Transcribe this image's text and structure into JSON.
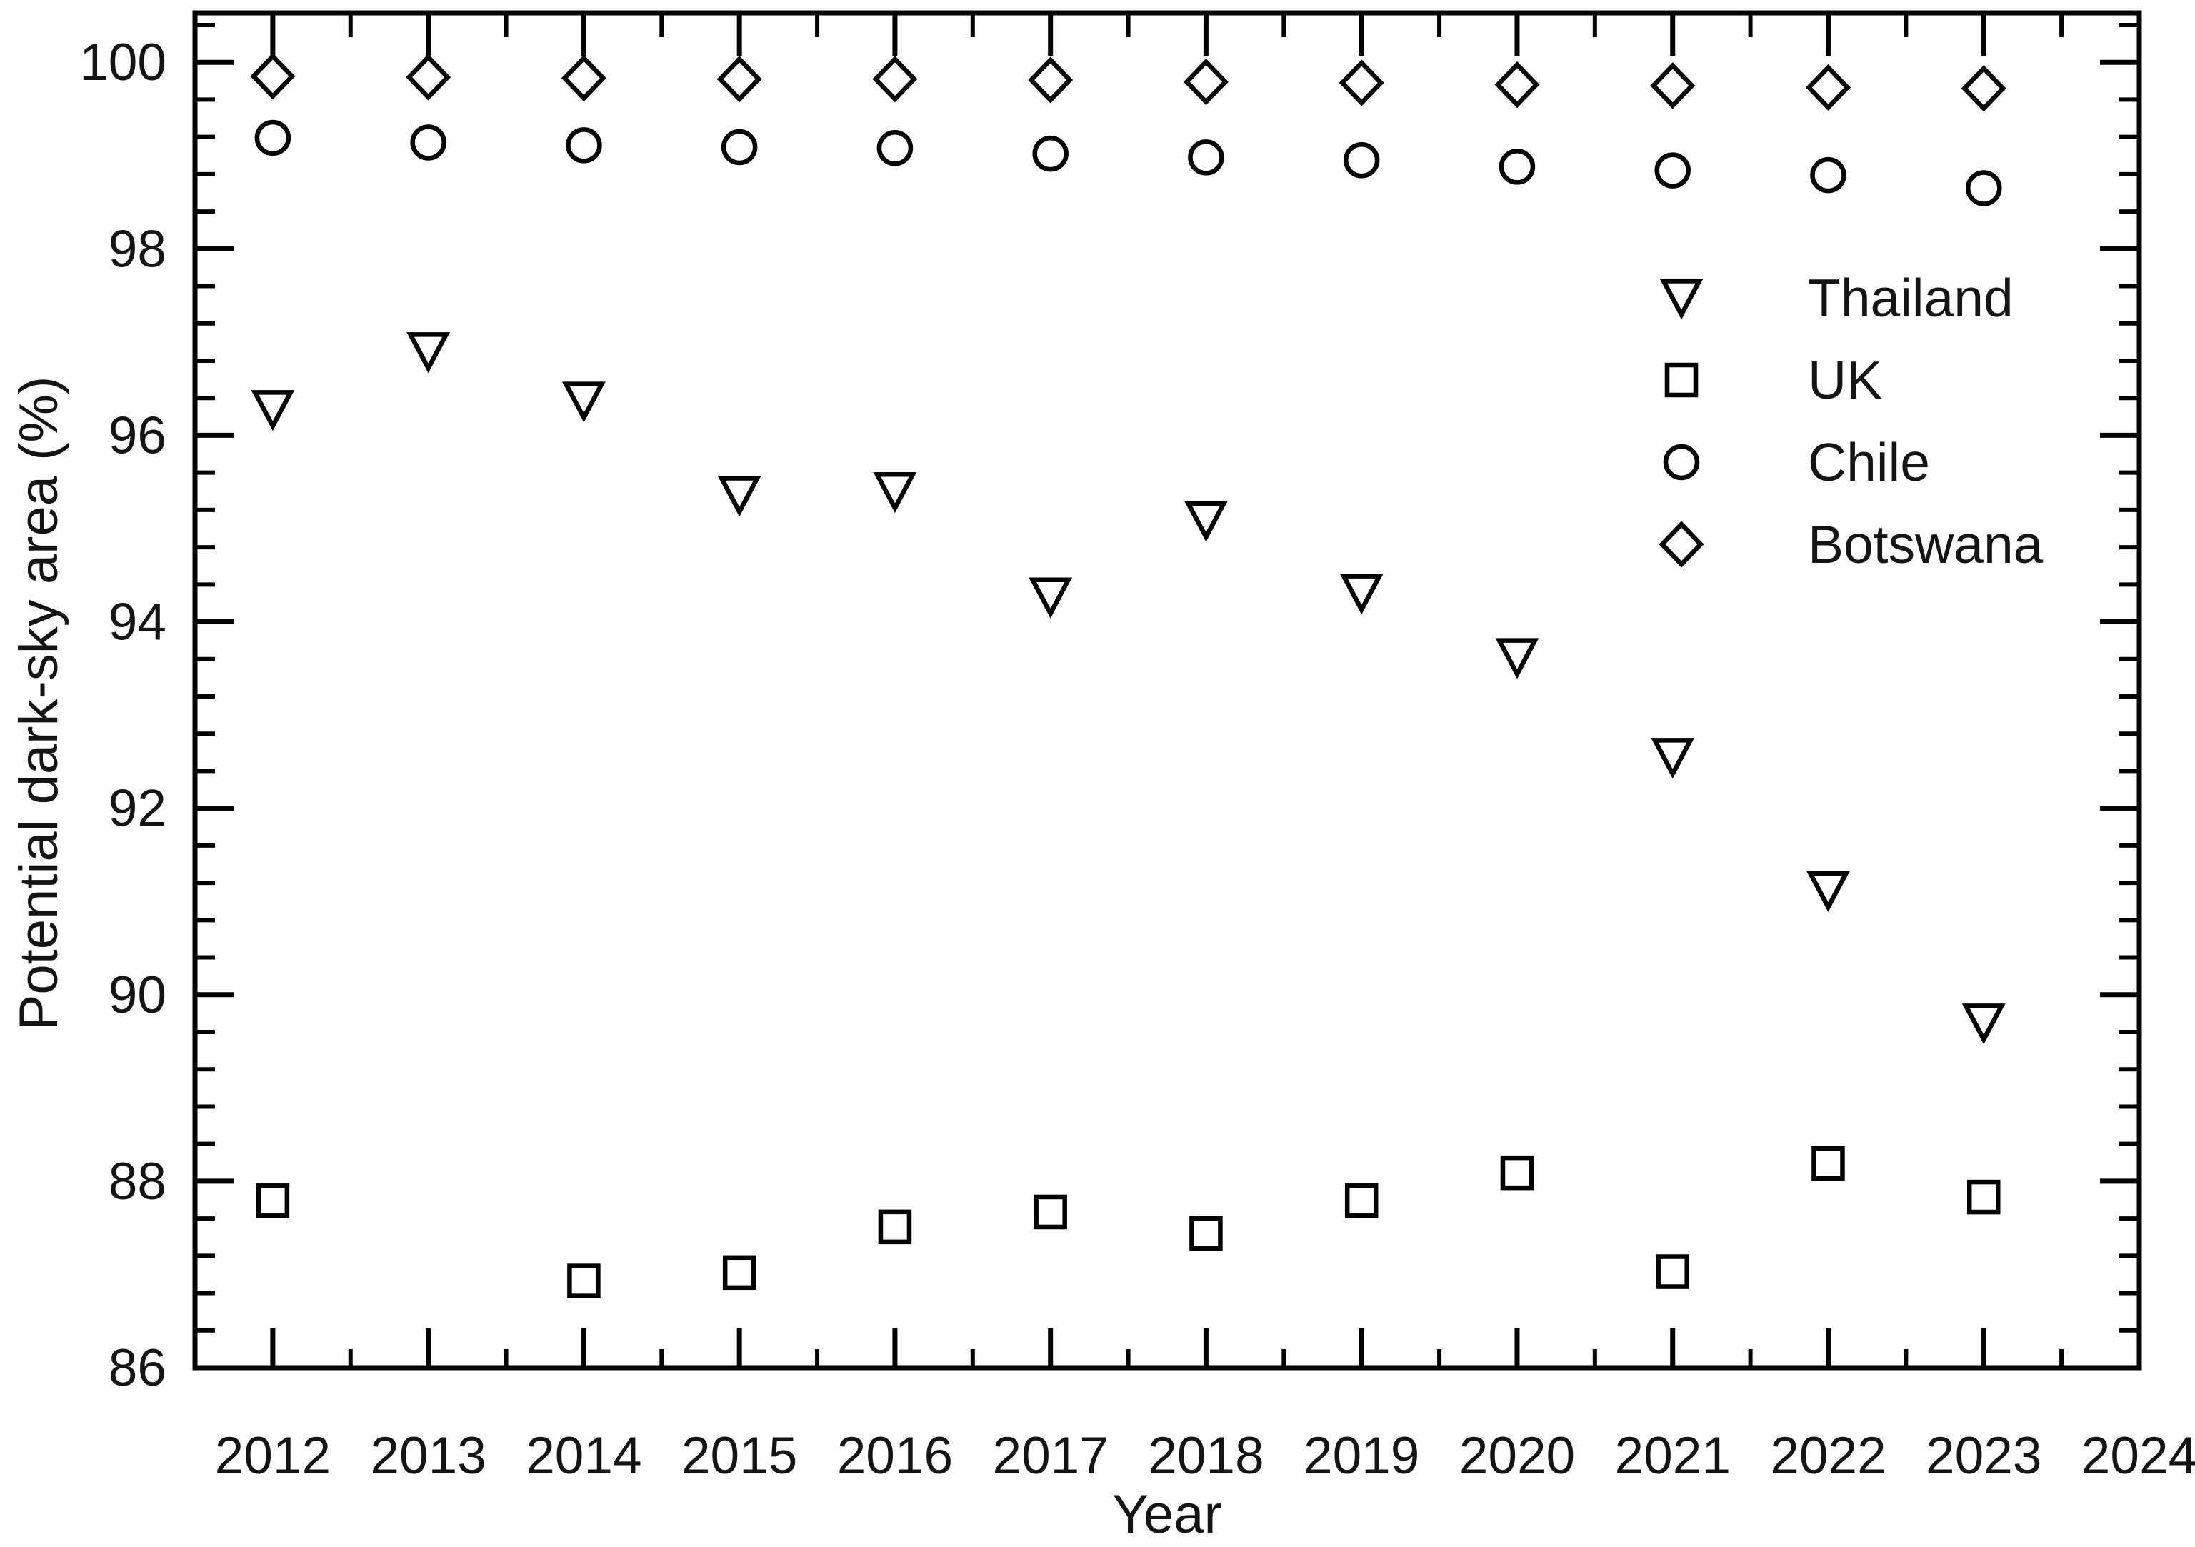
{
  "chart_data": {
    "type": "scatter",
    "title": "",
    "xlabel": "Year",
    "ylabel": "Potential dark-sky area (%)",
    "x": [
      2012,
      2013,
      2014,
      2015,
      2016,
      2017,
      2018,
      2019,
      2020,
      2021,
      2022,
      2023
    ],
    "series": [
      {
        "name": "Thailand",
        "marker": "triangle-down",
        "values": [
          96.28,
          96.9,
          96.37,
          95.36,
          95.4,
          94.27,
          95.09,
          94.31,
          93.62,
          92.55,
          91.12,
          89.7
        ]
      },
      {
        "name": "UK",
        "marker": "square",
        "values": [
          87.79,
          null,
          86.93,
          87.02,
          87.51,
          87.67,
          87.44,
          87.79,
          88.09,
          87.03,
          88.19,
          87.83
        ]
      },
      {
        "name": "Chile",
        "marker": "circle",
        "values": [
          99.19,
          99.14,
          99.11,
          99.09,
          99.08,
          99.02,
          98.98,
          98.95,
          98.88,
          98.84,
          98.79,
          98.65
        ]
      },
      {
        "name": "Botswana",
        "marker": "diamond",
        "values": [
          99.85,
          99.84,
          99.83,
          99.82,
          99.82,
          99.81,
          99.79,
          99.78,
          99.76,
          99.75,
          99.73,
          99.72
        ]
      }
    ],
    "xlim": [
      2011.5,
      2024
    ],
    "ylim": [
      86,
      100.53
    ],
    "x_tick_labels": [
      "2012",
      "2013",
      "2014",
      "2015",
      "2016",
      "2017",
      "2018",
      "2019",
      "2020",
      "2021",
      "2022",
      "2023",
      "2024"
    ],
    "x_major_ticks": [
      2012,
      2013,
      2014,
      2015,
      2016,
      2017,
      2018,
      2019,
      2020,
      2021,
      2022,
      2023,
      2024
    ],
    "x_minor_step": 0.5,
    "y_tick_labels": [
      "86",
      "88",
      "90",
      "92",
      "94",
      "96",
      "98",
      "100"
    ],
    "y_major_ticks": [
      86,
      88,
      90,
      92,
      94,
      96,
      98,
      100
    ],
    "y_minor_step": 0.4,
    "grid": false,
    "legend_position": "inside-upper-right",
    "colors": {
      "foreground": "#000000",
      "background": "#ffffff",
      "text": "#141414"
    }
  }
}
